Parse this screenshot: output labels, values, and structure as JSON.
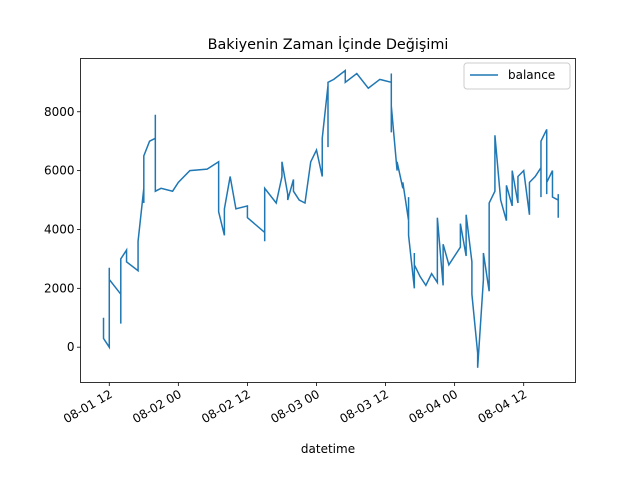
{
  "chart_data": {
    "type": "line",
    "title": "Bakiyenin Zaman İçinde Değişimi",
    "xlabel": "datetime",
    "x": [
      "08-01 11",
      "08-01 11",
      "08-01 12",
      "08-01 12",
      "08-01 12",
      "08-01 14",
      "08-01 14",
      "08-01 14",
      "08-01 15",
      "08-01 15",
      "08-01 17",
      "08-01 17",
      "08-01 18",
      "08-01 18",
      "08-01 18",
      "08-01 19",
      "08-01 20",
      "08-01 20",
      "08-01 20",
      "08-01 21",
      "08-01 23",
      "08-02 00",
      "08-02 02",
      "08-02 05",
      "08-02 07",
      "08-02 07",
      "08-02 08",
      "08-02 08",
      "08-02 09",
      "08-02 10",
      "08-02 12",
      "08-02 12",
      "08-02 15",
      "08-02 15",
      "08-02 15",
      "08-02 17",
      "08-02 18",
      "08-02 18",
      "08-02 19",
      "08-02 19",
      "08-02 20",
      "08-02 20",
      "08-02 21",
      "08-02 22",
      "08-02 23",
      "08-03 00",
      "08-03 01",
      "08-03 01",
      "08-03 02",
      "08-03 02",
      "08-03 02",
      "08-03 03",
      "08-03 05",
      "08-03 05",
      "08-03 07",
      "08-03 09",
      "08-03 11",
      "08-03 13",
      "08-03 13",
      "08-03 13",
      "08-03 13",
      "08-03 14",
      "08-03 14",
      "08-03 15",
      "08-03 15",
      "08-03 16",
      "08-03 16",
      "08-03 16",
      "08-03 17",
      "08-03 17",
      "08-03 17",
      "08-03 18",
      "08-03 19",
      "08-03 20",
      "08-03 21",
      "08-03 21",
      "08-03 22",
      "08-03 22",
      "08-03 23",
      "08-04 01",
      "08-04 01",
      "08-04 01",
      "08-04 02",
      "08-04 02",
      "08-04 03",
      "08-04 03",
      "08-04 04",
      "08-04 04",
      "08-04 05",
      "08-04 05",
      "08-04 06",
      "08-04 06",
      "08-04 07",
      "08-04 07",
      "08-04 07",
      "08-04 08",
      "08-04 09",
      "08-04 09",
      "08-04 10",
      "08-04 10",
      "08-04 11",
      "08-04 11",
      "08-04 12",
      "08-04 13",
      "08-04 13",
      "08-04 14",
      "08-04 15",
      "08-04 15",
      "08-04 15",
      "08-04 16",
      "08-04 16",
      "08-04 16",
      "08-04 17",
      "08-04 17",
      "08-04 18",
      "08-04 18",
      "08-04 18",
      "08-04 18"
    ],
    "series": [
      {
        "name": "balance",
        "color": "#1f77b4",
        "values": [
          1000,
          300,
          0,
          2700,
          2300,
          1800,
          800,
          3000,
          3300,
          2900,
          2600,
          3600,
          5400,
          4900,
          6500,
          7000,
          7100,
          7900,
          5300,
          5400,
          5300,
          5600,
          6000,
          6050,
          6300,
          4600,
          3800,
          4700,
          5800,
          4700,
          4800,
          4400,
          3900,
          3600,
          5400,
          4900,
          5800,
          6300,
          5200,
          5000,
          5700,
          5300,
          5000,
          4900,
          6300,
          6700,
          5800,
          7100,
          8900,
          6800,
          9000,
          9100,
          9400,
          9000,
          9300,
          8800,
          9100,
          9000,
          9300,
          7300,
          8200,
          6000,
          6300,
          5400,
          5600,
          4300,
          5100,
          3800,
          2000,
          3200,
          2800,
          2400,
          2100,
          2500,
          2200,
          4400,
          2100,
          3500,
          2800,
          3400,
          3900,
          4200,
          3100,
          4500,
          2900,
          1800,
          -200,
          -700,
          2300,
          3200,
          1900,
          4900,
          5300,
          6900,
          7200,
          5000,
          4300,
          5500,
          4800,
          6000,
          4900,
          5800,
          6000,
          4500,
          5600,
          5800,
          6100,
          5100,
          7000,
          7400,
          5200,
          5600,
          6000,
          5100,
          5000,
          4400,
          5100,
          5200
        ]
      }
    ],
    "xlim": [
      "08-01 07",
      "08-04 21"
    ],
    "xticks": [
      "08-01 12",
      "08-02 00",
      "08-02 12",
      "08-03 00",
      "08-03 12",
      "08-04 00",
      "08-04 12"
    ],
    "ylim": [
      -1200,
      9810
    ],
    "yticks": [
      0,
      2000,
      4000,
      6000,
      8000
    ],
    "legend": "upper right"
  }
}
